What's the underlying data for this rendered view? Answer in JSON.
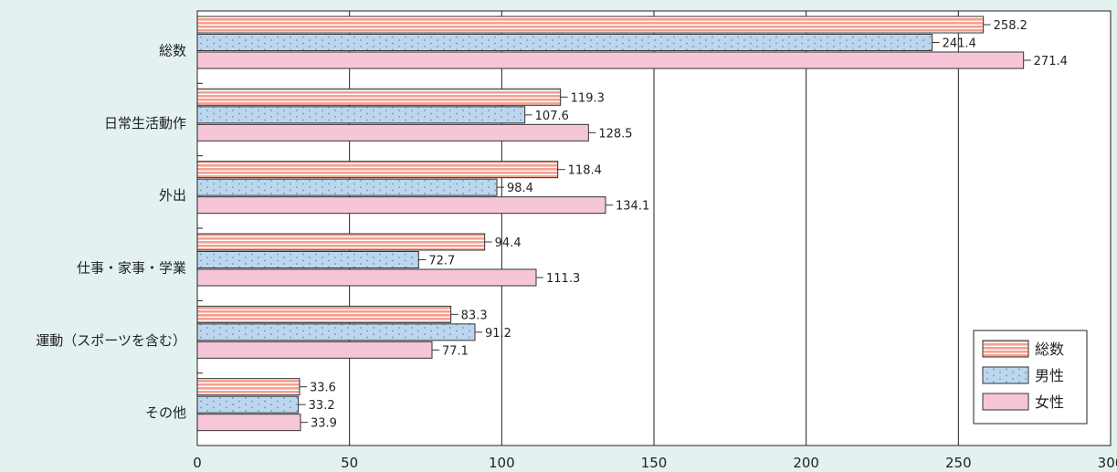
{
  "chart_data": {
    "type": "bar",
    "orientation": "horizontal",
    "categories": [
      "総数",
      "日常生活動作",
      "外出",
      "仕事・家事・学業",
      "運動（スポーツを含む）",
      "その他"
    ],
    "series": [
      {
        "name": "総数",
        "values": [
          258.2,
          119.3,
          118.4,
          94.4,
          83.3,
          33.6
        ],
        "fill": "#f4a090",
        "pattern": "horizontal-stripes"
      },
      {
        "name": "男性",
        "values": [
          241.4,
          107.6,
          98.4,
          72.7,
          91.2,
          33.2
        ],
        "fill": "#bcd6ee",
        "pattern": "dots"
      },
      {
        "name": "女性",
        "values": [
          271.4,
          128.5,
          134.1,
          111.3,
          77.1,
          33.9
        ],
        "fill": "#f6c6d8",
        "pattern": "solid"
      }
    ],
    "value_labels": [
      [
        "258.2",
        "119.3",
        "118.4",
        "94.4",
        "83.3",
        "33.6"
      ],
      [
        "241.4",
        "107.6",
        "98.4",
        "72.7",
        "91.2",
        "33.2"
      ],
      [
        "271.4",
        "128.5",
        "134.1",
        "111.3",
        "77.1",
        "33.9"
      ]
    ],
    "x_ticks": [
      "0",
      "50",
      "100",
      "150",
      "200",
      "250",
      "300"
    ],
    "xlim": [
      0,
      300
    ],
    "grid": true,
    "legend_position": "bottom-right",
    "background": "#e3f1f0",
    "plot_background": "#ffffff"
  }
}
